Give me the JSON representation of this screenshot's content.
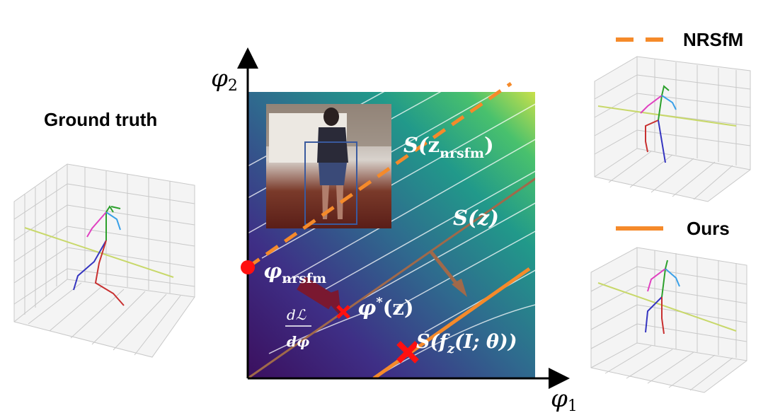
{
  "left_panel": {
    "title": "Ground truth"
  },
  "legend": {
    "nrsfm": {
      "label": "NRSfM",
      "color": "#f58a2a",
      "style": "dashed"
    },
    "ours": {
      "label": "Ours",
      "color": "#f58a2a",
      "style": "solid"
    }
  },
  "axes": {
    "x_label_symbol": "φ",
    "x_label_sub": "1",
    "y_label_symbol": "φ",
    "y_label_sub": "2"
  },
  "annotations": {
    "s_nrsfm": {
      "prefix": "S(",
      "core": "z",
      "sub": "nrsfm",
      "suffix": ")"
    },
    "s_z": "S(z)",
    "s_f": {
      "prefix": "S(",
      "f": "f",
      "sub": "z",
      "suffix": "(I; θ))"
    },
    "phi_star": {
      "core": "φ",
      "sup": "*",
      "suffix": "(z)"
    },
    "phi_nrsfm": {
      "core": "φ",
      "sub": "nrsfm"
    },
    "gradient": {
      "numerator": "dℒ",
      "denominator": "dφ"
    }
  },
  "colors": {
    "orange": "#f58a2a",
    "brown_line": "#a0694a",
    "red_marker": "#ff1010",
    "arrow_dark_red": "#7a1830",
    "arrow_brown": "#a0694a"
  },
  "icons": [
    "skeleton-3d-plot-icon",
    "person-photo-inset-icon",
    "cross-marker-icon",
    "dot-marker-icon"
  ]
}
